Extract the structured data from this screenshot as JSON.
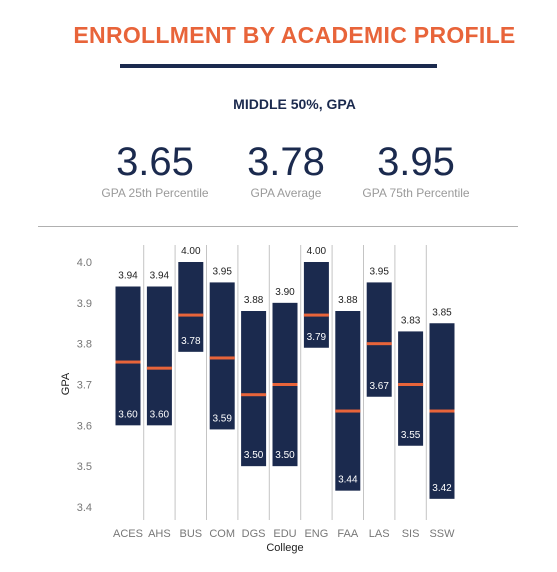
{
  "header": {
    "title": "ENROLLMENT BY ACADEMIC PROFILE",
    "subtitle": "MIDDLE 50%, GPA"
  },
  "stats": [
    {
      "value": "3.65",
      "label": "GPA 25th Percentile"
    },
    {
      "value": "3.78",
      "label": "GPA Average"
    },
    {
      "value": "3.95",
      "label": "GPA 75th Percentile"
    }
  ],
  "colors": {
    "title": "#e8643a",
    "navy": "#1b2a4e",
    "median_line": "#e8643a",
    "muted_text": "#9a9a9a"
  },
  "chart_data": {
    "type": "bar",
    "subtype": "floating-range",
    "xlabel": "College",
    "ylabel": "GPA",
    "ylim": [
      3.4,
      4.0
    ],
    "yticks": [
      "3.4",
      "3.5",
      "3.6",
      "3.7",
      "3.8",
      "3.9",
      "4.0"
    ],
    "grid": "vertical separators",
    "categories": [
      "ACES",
      "AHS",
      "BUS",
      "COM",
      "DGS",
      "EDU",
      "ENG",
      "FAA",
      "LAS",
      "SIS",
      "SSW"
    ],
    "low": [
      3.6,
      3.6,
      3.78,
      3.59,
      3.5,
      3.5,
      3.79,
      3.44,
      3.67,
      3.55,
      3.42
    ],
    "high": [
      3.94,
      3.94,
      4.0,
      3.95,
      3.88,
      3.9,
      4.0,
      3.88,
      3.95,
      3.83,
      3.85
    ],
    "low_labels": [
      "3.60",
      "3.60",
      "3.78",
      "3.59",
      "3.50",
      "3.50",
      "3.79",
      "3.44",
      "3.67",
      "3.55",
      "3.42"
    ],
    "high_labels": [
      "3.94",
      "3.94",
      "4.00",
      "3.95",
      "3.88",
      "3.90",
      "4.00",
      "3.88",
      "3.95",
      "3.83",
      "3.85"
    ],
    "mid": [
      3.755,
      3.74,
      3.87,
      3.765,
      3.675,
      3.7,
      3.87,
      3.635,
      3.8,
      3.7,
      3.635
    ]
  }
}
